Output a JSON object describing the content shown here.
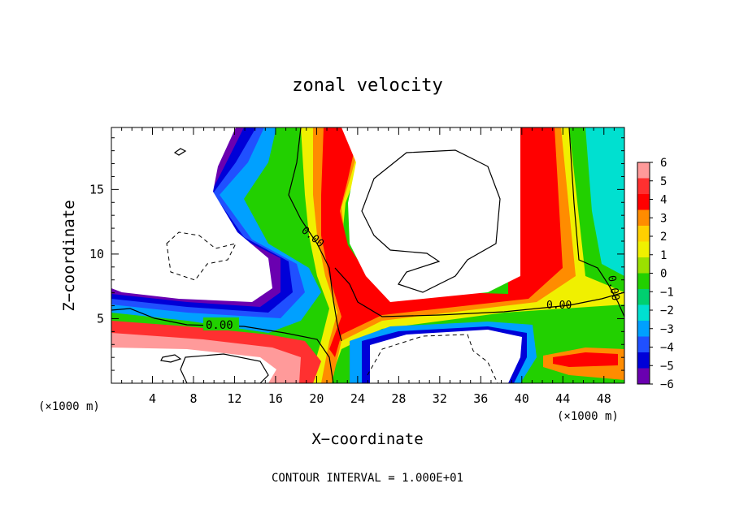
{
  "chart_data": {
    "type": "heatmap",
    "title": "zonal velocity",
    "xlabel": "X−coordinate",
    "ylabel": "Z−coordinate",
    "x_unit_left": "(×1000 m)",
    "x_unit_right": "(×1000 m)",
    "footer": "CONTOUR INTERVAL = 1.000E+01",
    "xlim": [
      0,
      50
    ],
    "ylim": [
      0,
      19.8
    ],
    "x_ticks": [
      4,
      8,
      12,
      16,
      20,
      24,
      28,
      32,
      36,
      40,
      44,
      48
    ],
    "y_ticks": [
      5,
      10,
      15
    ],
    "colorbar": {
      "levels": [
        6,
        5,
        4,
        3,
        2,
        1,
        0,
        -1,
        -2,
        -3,
        -4,
        -5,
        -6
      ],
      "labels": [
        "6",
        "5",
        "4",
        "3",
        "2",
        "1",
        "0",
        "−1",
        "−2",
        "−3",
        "−4",
        "−5",
        "−6"
      ],
      "colors": [
        "#ff9a9a",
        "#ff3030",
        "#ff0000",
        "#ff8c00",
        "#ffd000",
        "#f0f000",
        "#9be000",
        "#22d000",
        "#00d070",
        "#00e0d0",
        "#00a0ff",
        "#2050ff",
        "#0000d8",
        "#6a00b0"
      ],
      "out_of_range_color": "#ffffff"
    },
    "contour_labels": [
      {
        "text": "0.00",
        "x": 9.5,
        "y": 4.5
      },
      {
        "text": "0.00",
        "x": 19.5,
        "y": 11.6
      },
      {
        "text": "0.00",
        "x": 44.3,
        "y": 5.8
      },
      {
        "text": "0.00",
        "x": 48.5,
        "y": 7.5
      }
    ]
  }
}
